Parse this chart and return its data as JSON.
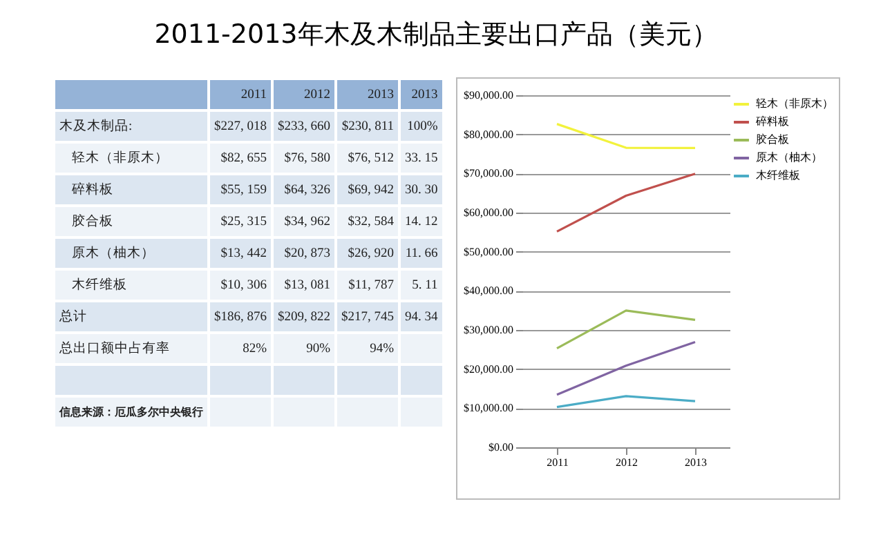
{
  "chart_data": [
    {
      "type": "other",
      "title": "2011-2013年木及木制品主要出口产品（美元）",
      "categories": [
        "2011",
        "2012",
        "2013",
        "2013"
      ],
      "y_categories": [
        "木及木制品:",
        "轻木（非原木）",
        "碎料板",
        "胶合板",
        "原木（柚木）",
        "木纤维板",
        "总计",
        "总出口额中占有率"
      ],
      "cell_labels": [
        [
          "$227, 018",
          "$233, 660",
          "$230, 811",
          "100%"
        ],
        [
          "$82, 655",
          "$76, 580",
          "$76, 512",
          "33. 15"
        ],
        [
          "$55, 159",
          "$64, 326",
          "$69, 942",
          "30. 30"
        ],
        [
          "$25, 315",
          "$34, 962",
          "$32, 584",
          "14. 12"
        ],
        [
          "$13, 442",
          "$20, 873",
          "$26, 920",
          "11. 66"
        ],
        [
          "$10, 306",
          "$13, 081",
          "$11, 787",
          "5. 11"
        ],
        [
          "$186, 876",
          "$209, 822",
          "$217, 745",
          "94. 34"
        ],
        [
          "82%",
          "90%",
          "94%",
          null
        ]
      ],
      "annotations": [
        "信息来源：厄瓜多尔中央银行"
      ]
    },
    {
      "type": "line",
      "categories": [
        "2011",
        "2012",
        "2013"
      ],
      "ylim": [
        0,
        90000
      ],
      "yticks": [
        {
          "value": 0,
          "label": "$0.00"
        },
        {
          "value": 10000,
          "label": "$10,000.00"
        },
        {
          "value": 20000,
          "label": "$20,000.00"
        },
        {
          "value": 30000,
          "label": "$30,000.00"
        },
        {
          "value": 40000,
          "label": "$40,000.00"
        },
        {
          "value": 50000,
          "label": "$50,000.00"
        },
        {
          "value": 60000,
          "label": "$60,000.00"
        },
        {
          "value": 70000,
          "label": "$70,000.00"
        },
        {
          "value": 80000,
          "label": "$80,000.00"
        },
        {
          "value": 90000,
          "label": "$90,000.00"
        }
      ],
      "grid": "y",
      "legend": "right",
      "series": [
        {
          "name": "轻木（非原木）",
          "color": "#f2f23c",
          "values": [
            82655,
            76580,
            76512
          ]
        },
        {
          "name": "碎料板",
          "color": "#c0504d",
          "values": [
            55159,
            64326,
            69942
          ]
        },
        {
          "name": "胶合板",
          "color": "#9bbb59",
          "values": [
            25315,
            34962,
            32584
          ]
        },
        {
          "name": "原木（柚木）",
          "color": "#8064a2",
          "values": [
            13442,
            20873,
            26920
          ]
        },
        {
          "name": "木纤维板",
          "color": "#4bacc6",
          "values": [
            10306,
            13081,
            11787
          ]
        }
      ]
    }
  ]
}
